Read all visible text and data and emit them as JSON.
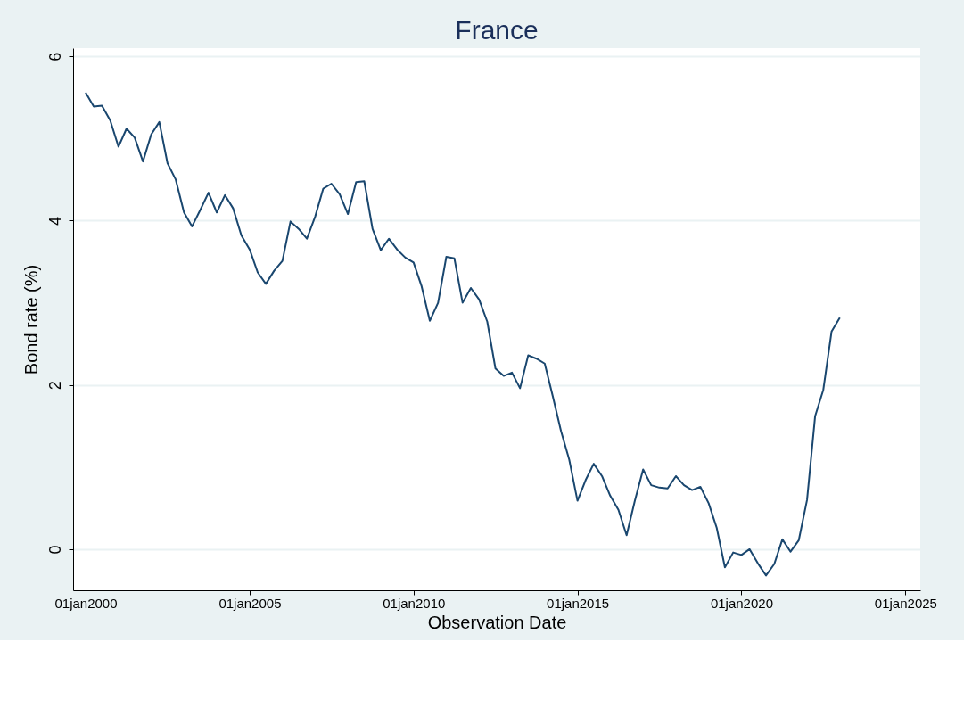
{
  "chart_data": {
    "type": "line",
    "title": "France",
    "xlabel": "Observation Date",
    "ylabel": "Bond rate (%)",
    "x": [
      "2000-01",
      "2000-04",
      "2000-07",
      "2000-10",
      "2001-01",
      "2001-04",
      "2001-07",
      "2001-10",
      "2002-01",
      "2002-04",
      "2002-07",
      "2002-10",
      "2003-01",
      "2003-04",
      "2003-07",
      "2003-10",
      "2004-01",
      "2004-04",
      "2004-07",
      "2004-10",
      "2005-01",
      "2005-04",
      "2005-07",
      "2005-10",
      "2006-01",
      "2006-04",
      "2006-07",
      "2006-10",
      "2007-01",
      "2007-04",
      "2007-07",
      "2007-10",
      "2008-01",
      "2008-04",
      "2008-07",
      "2008-10",
      "2009-01",
      "2009-04",
      "2009-07",
      "2009-10",
      "2010-01",
      "2010-04",
      "2010-07",
      "2010-10",
      "2011-01",
      "2011-04",
      "2011-07",
      "2011-10",
      "2012-01",
      "2012-04",
      "2012-07",
      "2012-10",
      "2013-01",
      "2013-04",
      "2013-07",
      "2013-10",
      "2014-01",
      "2014-04",
      "2014-07",
      "2014-10",
      "2015-01",
      "2015-04",
      "2015-07",
      "2015-10",
      "2016-01",
      "2016-04",
      "2016-07",
      "2016-10",
      "2017-01",
      "2017-04",
      "2017-07",
      "2017-10",
      "2018-01",
      "2018-04",
      "2018-07",
      "2018-10",
      "2019-01",
      "2019-04",
      "2019-07",
      "2019-10",
      "2020-01",
      "2020-04",
      "2020-07",
      "2020-10",
      "2021-01",
      "2021-04",
      "2021-07",
      "2021-10",
      "2022-01",
      "2022-04",
      "2022-07",
      "2022-10",
      "2023-01"
    ],
    "series": [
      {
        "color": "#1a476f",
        "values": [
          5.56,
          5.39,
          5.4,
          5.22,
          4.9,
          5.12,
          5.01,
          4.72,
          5.05,
          5.2,
          4.7,
          4.5,
          4.1,
          3.93,
          4.13,
          4.34,
          4.1,
          4.31,
          4.15,
          3.82,
          3.65,
          3.37,
          3.23,
          3.39,
          3.51,
          3.99,
          3.9,
          3.78,
          4.05,
          4.39,
          4.45,
          4.32,
          4.08,
          4.47,
          4.48,
          3.9,
          3.64,
          3.78,
          3.65,
          3.55,
          3.49,
          3.2,
          2.78,
          3.0,
          3.56,
          3.54,
          3.0,
          3.18,
          3.04,
          2.77,
          2.2,
          2.11,
          2.15,
          1.96,
          2.36,
          2.32,
          2.26,
          1.86,
          1.44,
          1.09,
          0.59,
          0.84,
          1.04,
          0.89,
          0.65,
          0.48,
          0.17,
          0.59,
          0.97,
          0.78,
          0.75,
          0.74,
          0.89,
          0.78,
          0.72,
          0.76,
          0.56,
          0.26,
          -0.22,
          -0.04,
          -0.07,
          0.0,
          -0.17,
          -0.32,
          -0.18,
          0.12,
          -0.03,
          0.11,
          0.6,
          1.62,
          1.94,
          2.65,
          2.82
        ]
      }
    ],
    "xlim": [
      "1999-08-15",
      "2025-06-15"
    ],
    "xticks": [
      {
        "value": "2000-01-01",
        "label": "01jan2000"
      },
      {
        "value": "2005-01-01",
        "label": "01jan2005"
      },
      {
        "value": "2010-01-01",
        "label": "01jan2010"
      },
      {
        "value": "2015-01-01",
        "label": "01jan2015"
      },
      {
        "value": "2020-01-01",
        "label": "01jan2020"
      },
      {
        "value": "2025-01-01",
        "label": "01jan2025"
      }
    ],
    "ylim": [
      -0.5,
      6.1
    ],
    "yticks": [
      0,
      2,
      4,
      6
    ],
    "grid": "y",
    "line_style": "solid",
    "marker": "none"
  }
}
